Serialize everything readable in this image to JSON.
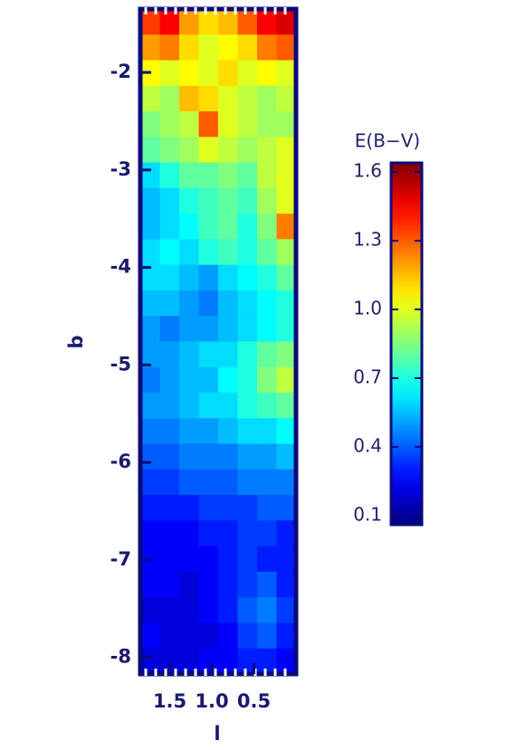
{
  "chart_data": {
    "type": "heatmap",
    "colormap": "jet",
    "xlabel": "l",
    "ylabel": "b",
    "colorbar_label": "E(B−V)",
    "xlim": [
      1.85,
      0.0
    ],
    "xticks": [
      1.5,
      {
        "value": 1.0,
        "label": "1.0"
      },
      0.5
    ],
    "ylim": [
      -8.17,
      -1.35
    ],
    "yticks": [
      -2,
      -3,
      -4,
      -5,
      -6,
      -7,
      -8
    ],
    "clim": [
      0.06,
      1.64
    ],
    "cticks": [
      0.1,
      0.4,
      0.7,
      {
        "value": 1.0,
        "label": "1.0"
      },
      1.3,
      1.6
    ],
    "z": [
      [
        1.35,
        1.45,
        1.2,
        1.1,
        1.15,
        1.3,
        1.45,
        1.5
      ],
      [
        1.2,
        1.25,
        1.1,
        1.0,
        1.05,
        1.1,
        1.25,
        1.3
      ],
      [
        1.05,
        1.0,
        1.05,
        1.0,
        1.1,
        1.0,
        1.05,
        1.0
      ],
      [
        0.95,
        0.9,
        1.15,
        1.1,
        1.0,
        0.95,
        0.9,
        0.95
      ],
      [
        0.85,
        0.9,
        0.95,
        1.3,
        1.0,
        0.95,
        0.9,
        0.9
      ],
      [
        0.8,
        0.85,
        0.9,
        1.0,
        0.95,
        0.9,
        0.95,
        1.0
      ],
      [
        0.6,
        0.7,
        0.8,
        0.8,
        0.85,
        0.8,
        0.95,
        1.0
      ],
      [
        0.55,
        0.6,
        0.7,
        0.75,
        0.8,
        0.75,
        0.9,
        1.0
      ],
      [
        0.55,
        0.6,
        0.65,
        0.75,
        0.8,
        0.7,
        0.85,
        1.25
      ],
      [
        0.6,
        0.65,
        0.6,
        0.7,
        0.75,
        0.7,
        0.8,
        0.9
      ],
      [
        0.6,
        0.6,
        0.55,
        0.5,
        0.6,
        0.65,
        0.7,
        0.8
      ],
      [
        0.55,
        0.55,
        0.5,
        0.45,
        0.55,
        0.6,
        0.65,
        0.7
      ],
      [
        0.5,
        0.45,
        0.5,
        0.5,
        0.55,
        0.6,
        0.65,
        0.7
      ],
      [
        0.5,
        0.5,
        0.55,
        0.6,
        0.6,
        0.7,
        0.8,
        0.85
      ],
      [
        0.45,
        0.5,
        0.55,
        0.55,
        0.65,
        0.7,
        0.85,
        0.95
      ],
      [
        0.5,
        0.5,
        0.55,
        0.6,
        0.6,
        0.7,
        0.75,
        0.8
      ],
      [
        0.45,
        0.45,
        0.5,
        0.5,
        0.55,
        0.6,
        0.6,
        0.65
      ],
      [
        0.4,
        0.4,
        0.45,
        0.45,
        0.45,
        0.5,
        0.5,
        0.55
      ],
      [
        0.35,
        0.35,
        0.4,
        0.4,
        0.4,
        0.45,
        0.45,
        0.45
      ],
      [
        0.3,
        0.3,
        0.3,
        0.35,
        0.35,
        0.35,
        0.4,
        0.4
      ],
      [
        0.25,
        0.25,
        0.25,
        0.3,
        0.3,
        0.35,
        0.35,
        0.3
      ],
      [
        0.25,
        0.25,
        0.25,
        0.25,
        0.3,
        0.35,
        0.3,
        0.3
      ],
      [
        0.25,
        0.25,
        0.2,
        0.25,
        0.3,
        0.35,
        0.4,
        0.3
      ],
      [
        0.2,
        0.2,
        0.2,
        0.25,
        0.3,
        0.4,
        0.45,
        0.35
      ],
      [
        0.25,
        0.2,
        0.2,
        0.2,
        0.25,
        0.35,
        0.4,
        0.3
      ],
      [
        0.2,
        0.2,
        0.2,
        0.25,
        0.25,
        0.3,
        0.3,
        0.25
      ]
    ]
  }
}
